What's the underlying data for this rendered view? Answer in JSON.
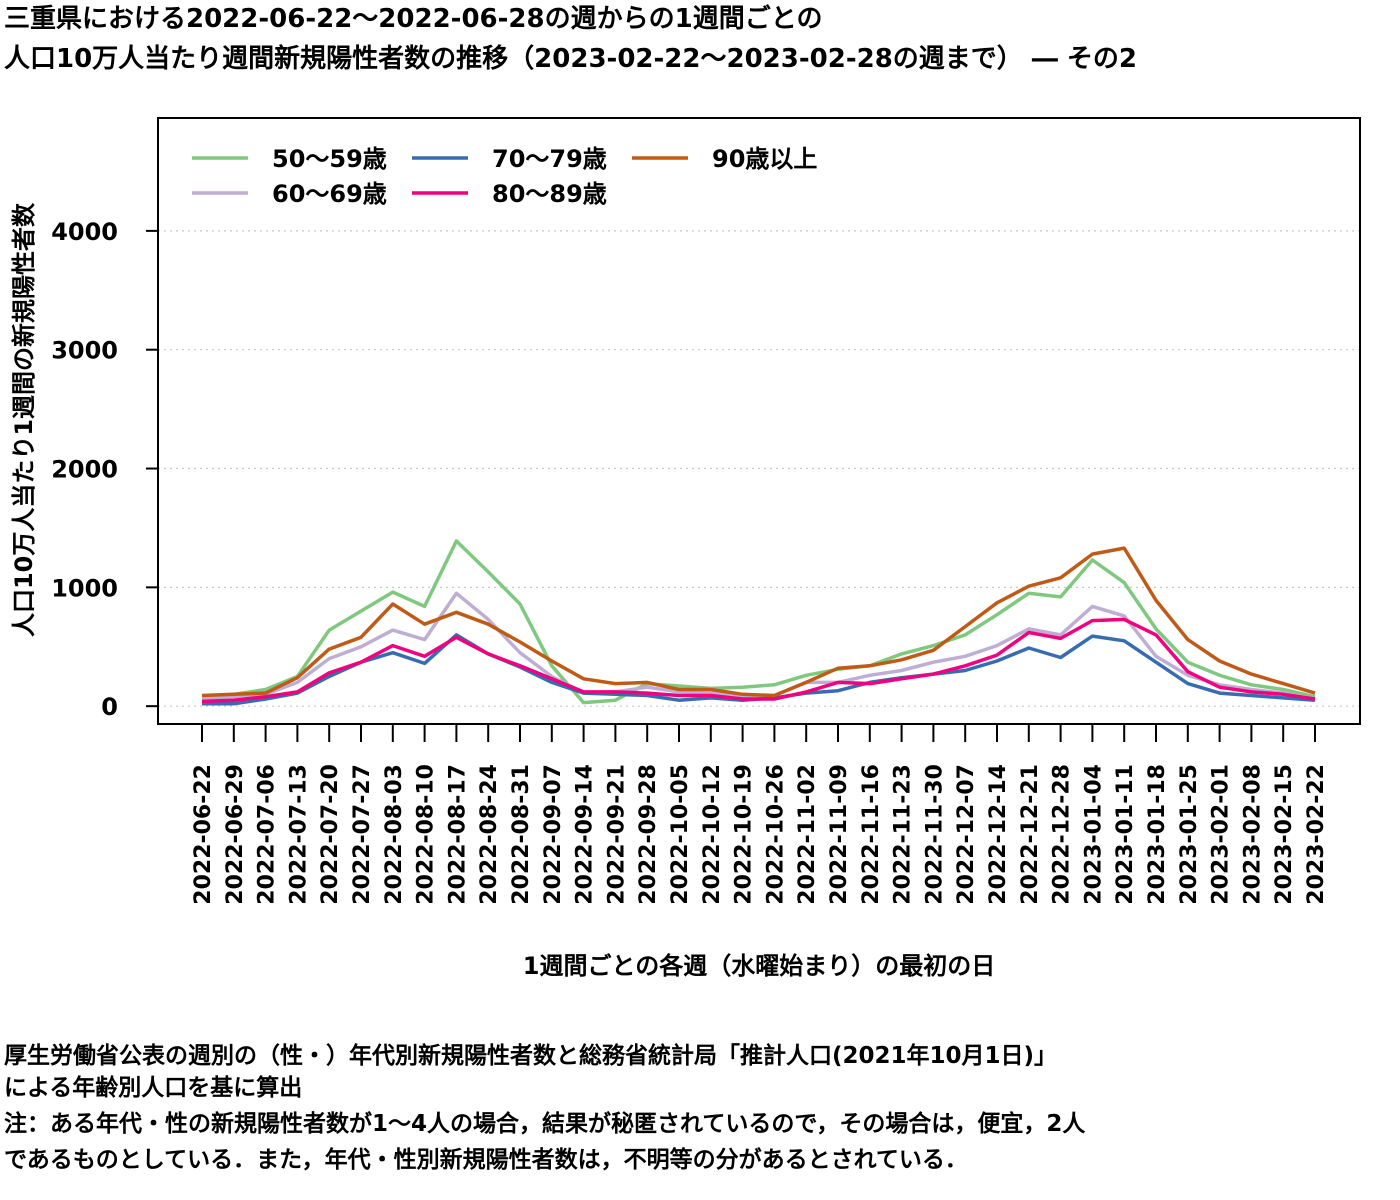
{
  "title": {
    "line1": "三重県における2022-06-22〜2022-06-28の週からの1週間ごとの",
    "line2": "人口10万人当たり週間新規陽性者数の推移（2023-02-22〜2023-02-28の週まで） ― その2"
  },
  "notes": {
    "line1": "厚生労働省公表の週別の（性・）年代別新規陽性者数と総務省統計局「推計人口(2021年10月1日)」",
    "line2": "による年齢別人口を基に算出",
    "line3": "注：ある年代・性の新規陽性者数が1〜4人の場合，結果が秘匿されているので，その場合は，便宜，2人",
    "line4": "であるものとしている．また，年代・性別新規陽性者数は，不明等の分があるとされている．"
  },
  "chart_data": {
    "type": "line",
    "xlabel": "1週間ごとの各週（水曜始まり）の最初の日",
    "ylabel": "人口10万人当たり1週間の新規陽性者数",
    "ylim": [
      -150,
      4950
    ],
    "yticks": [
      0,
      1000,
      2000,
      3000,
      4000
    ],
    "grid": "horizontal dotted",
    "legend": "top-left",
    "x": [
      "2022-06-22",
      "2022-06-29",
      "2022-07-06",
      "2022-07-13",
      "2022-07-20",
      "2022-07-27",
      "2022-08-03",
      "2022-08-10",
      "2022-08-17",
      "2022-08-24",
      "2022-08-31",
      "2022-09-07",
      "2022-09-14",
      "2022-09-21",
      "2022-09-28",
      "2022-10-05",
      "2022-10-12",
      "2022-10-19",
      "2022-10-26",
      "2022-11-02",
      "2022-11-09",
      "2022-11-16",
      "2022-11-23",
      "2022-11-30",
      "2022-12-07",
      "2022-12-14",
      "2022-12-21",
      "2022-12-28",
      "2023-01-04",
      "2023-01-11",
      "2023-01-18",
      "2023-01-25",
      "2023-02-01",
      "2023-02-08",
      "2023-02-15",
      "2023-02-22"
    ],
    "series": [
      {
        "name": "50〜59歳",
        "color": "#7fc97f",
        "values": [
          70,
          100,
          140,
          250,
          640,
          800,
          960,
          840,
          1390,
          1130,
          860,
          340,
          30,
          50,
          190,
          170,
          150,
          160,
          180,
          260,
          310,
          340,
          440,
          510,
          600,
          770,
          950,
          920,
          1230,
          1040,
          650,
          370,
          260,
          180,
          140,
          80
        ]
      },
      {
        "name": "60〜69歳",
        "color": "#beaed4",
        "values": [
          60,
          80,
          100,
          200,
          400,
          500,
          640,
          560,
          950,
          730,
          450,
          250,
          110,
          120,
          160,
          120,
          110,
          80,
          90,
          200,
          200,
          260,
          300,
          370,
          420,
          510,
          650,
          600,
          840,
          760,
          420,
          260,
          180,
          140,
          110,
          60
        ]
      },
      {
        "name": "70〜79歳",
        "color": "#386cb0",
        "values": [
          20,
          20,
          60,
          110,
          250,
          370,
          450,
          360,
          600,
          440,
          330,
          200,
          110,
          100,
          90,
          50,
          70,
          50,
          70,
          110,
          130,
          200,
          240,
          270,
          300,
          380,
          490,
          410,
          590,
          550,
          370,
          190,
          110,
          90,
          70,
          50
        ]
      },
      {
        "name": "80〜89歳",
        "color": "#f0027f",
        "values": [
          40,
          50,
          80,
          120,
          280,
          370,
          510,
          420,
          580,
          440,
          340,
          230,
          120,
          120,
          110,
          90,
          90,
          60,
          60,
          120,
          200,
          190,
          230,
          270,
          340,
          430,
          620,
          570,
          720,
          730,
          600,
          290,
          160,
          120,
          100,
          60
        ]
      },
      {
        "name": "90歳以上",
        "color": "#bf5b17",
        "values": [
          90,
          100,
          110,
          240,
          480,
          580,
          860,
          690,
          790,
          690,
          540,
          380,
          230,
          190,
          200,
          140,
          140,
          100,
          90,
          200,
          320,
          340,
          390,
          470,
          670,
          870,
          1010,
          1080,
          1280,
          1330,
          890,
          560,
          380,
          270,
          190,
          110
        ]
      }
    ]
  }
}
